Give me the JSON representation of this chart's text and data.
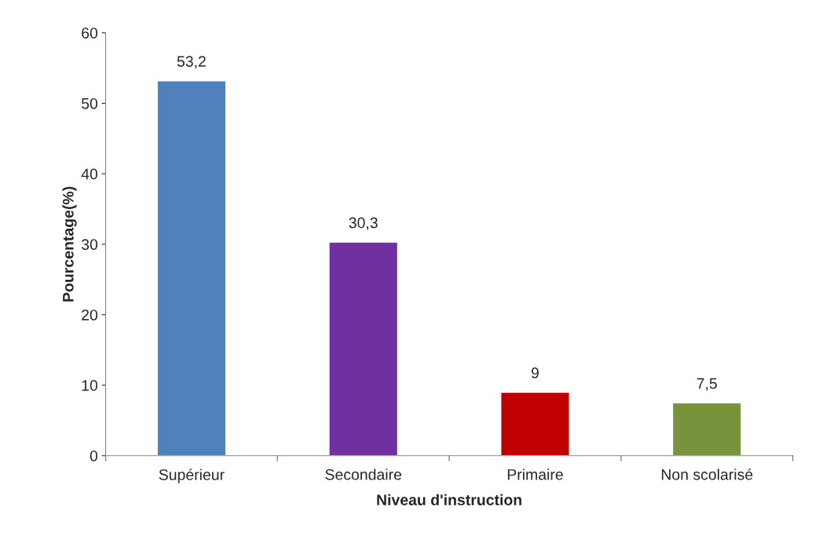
{
  "chart_data": {
    "type": "bar",
    "xlabel": "Niveau d'instruction",
    "ylabel": "Pourcentage(%)",
    "categories": [
      "Supérieur",
      "Secondaire",
      "Primaire",
      "Non scolarisé"
    ],
    "values": [
      53.2,
      30.3,
      9,
      7.5
    ],
    "colors": [
      "#4f81bd",
      "#7030a0",
      "#c00000",
      "#77933c"
    ],
    "value_labels": [
      "53,2",
      "30,3",
      "9",
      "7,5"
    ],
    "ylim": [
      0,
      60
    ],
    "yticks": [
      0,
      10,
      20,
      30,
      40,
      50,
      60
    ],
    "grid": false,
    "legend": false
  }
}
